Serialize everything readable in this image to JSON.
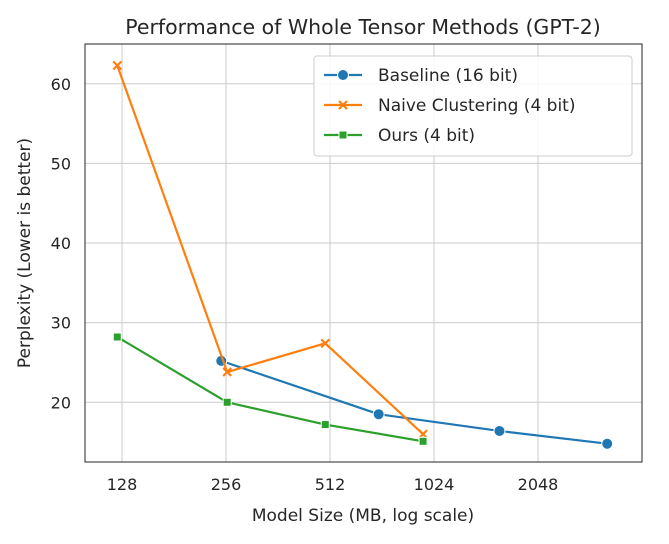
{
  "chart_data": {
    "type": "line",
    "title": "Performance of Whole Tensor Methods (GPT-2)",
    "xlabel": "Model Size (MB, log scale)",
    "ylabel": "Perplexity (Lower is better)",
    "x_scale": "log2",
    "xlim": [
      100,
      4096
    ],
    "ylim": [
      12.5,
      65
    ],
    "xticks": [
      128,
      256,
      512,
      1024,
      2048
    ],
    "xtick_labels": [
      "128",
      "256",
      "512",
      "1024",
      "2048"
    ],
    "yticks": [
      20,
      30,
      40,
      50,
      60
    ],
    "ytick_labels": [
      "20",
      "30",
      "40",
      "50",
      "60"
    ],
    "grid": true,
    "legend_position": "top-right",
    "series": [
      {
        "name": "Baseline (16 bit)",
        "color": "#1f77b4",
        "marker": "circle",
        "x": [
          248,
          708,
          1584,
          3248
        ],
        "y": [
          25.2,
          18.5,
          16.4,
          14.8
        ]
      },
      {
        "name": "Naive Clustering (4 bit)",
        "color": "#ff7f0e",
        "marker": "x",
        "x": [
          124,
          258,
          496,
          952
        ],
        "y": [
          62.3,
          23.8,
          27.4,
          16.0
        ]
      },
      {
        "name": "Ours (4 bit)",
        "color": "#2ca02c",
        "marker": "square",
        "x": [
          124,
          258,
          496,
          952
        ],
        "y": [
          28.2,
          20.0,
          17.2,
          15.1
        ]
      }
    ]
  }
}
